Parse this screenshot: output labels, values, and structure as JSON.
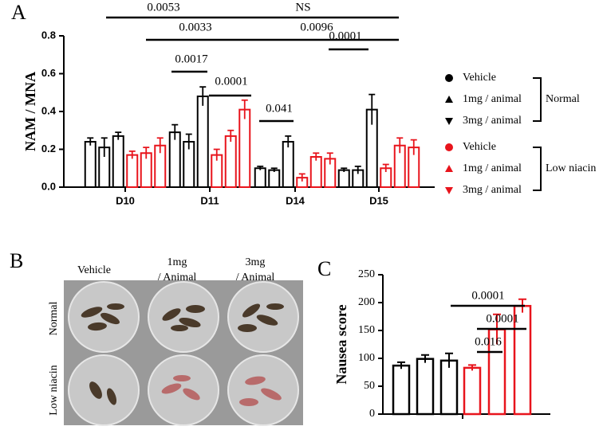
{
  "chart_data": [
    {
      "type": "bar",
      "panel": "A",
      "ylabel": "NAM / MNA",
      "categories": [
        "D10",
        "D11",
        "D14",
        "D15"
      ],
      "ylim": [
        0,
        0.8
      ],
      "yticks": [
        {
          "value": 0,
          "label": "0.0"
        },
        {
          "value": 0.2,
          "label": "0.2"
        },
        {
          "value": 0.4,
          "label": "0.4"
        },
        {
          "value": 0.6,
          "label": "0.6"
        },
        {
          "value": 0.8,
          "label": "0.8"
        }
      ],
      "series": [
        {
          "name": "Vehicle",
          "color": "#000000",
          "marker": "circle",
          "values": [
            0.24,
            0.29,
            0.1,
            0.09
          ],
          "errors": [
            0.02,
            0.04,
            0.01,
            0.01
          ]
        },
        {
          "name": "1mg / animal",
          "color": "#000000",
          "marker": "triangle",
          "values": [
            0.21,
            0.24,
            0.09,
            0.09
          ],
          "errors": [
            0.05,
            0.04,
            0.01,
            0.02
          ]
        },
        {
          "name": "3mg / animal",
          "color": "#000000",
          "marker": "triangle-down",
          "values": [
            0.27,
            0.48,
            0.24,
            0.41
          ],
          "errors": [
            0.02,
            0.05,
            0.03,
            0.08
          ]
        },
        {
          "name": "Vehicle",
          "color": "#e8141c",
          "marker": "circle",
          "values": [
            0.17,
            0.17,
            0.05,
            0.1
          ],
          "errors": [
            0.02,
            0.03,
            0.02,
            0.02
          ]
        },
        {
          "name": "1mg / animal",
          "color": "#e8141c",
          "marker": "triangle",
          "values": [
            0.18,
            0.27,
            0.16,
            0.22
          ],
          "errors": [
            0.03,
            0.03,
            0.02,
            0.04
          ]
        },
        {
          "name": "3mg / animal",
          "color": "#e8141c",
          "marker": "triangle-down",
          "values": [
            0.22,
            0.41,
            0.15,
            0.21
          ],
          "errors": [
            0.04,
            0.05,
            0.03,
            0.04
          ]
        }
      ],
      "legend_groups": [
        "Normal",
        "Low niacin"
      ],
      "annotations": [
        "0.0053",
        "NS",
        "0.0033",
        "0.0096",
        "0.0017",
        "0.0001",
        "0.041",
        "0.0001"
      ]
    },
    {
      "type": "bar",
      "panel": "C",
      "ylabel": "Nausea score",
      "ylim": [
        0,
        250
      ],
      "yticks": [
        0,
        50,
        100,
        150,
        200,
        250
      ],
      "values": [
        87,
        99,
        96,
        83,
        152,
        194
      ],
      "errors": [
        6,
        7,
        13,
        5,
        27,
        12
      ],
      "colors": [
        "#000000",
        "#000000",
        "#000000",
        "#e8141c",
        "#e8141c",
        "#e8141c"
      ],
      "annotations": [
        "0.0001",
        "0.0001",
        "0.016"
      ]
    }
  ],
  "photo": {
    "panel": "B",
    "columns": [
      "Vehicle",
      "1mg",
      "/ Animal",
      "3mg",
      "/ Animal"
    ],
    "rows": [
      "Normal",
      "Low niacin"
    ]
  }
}
